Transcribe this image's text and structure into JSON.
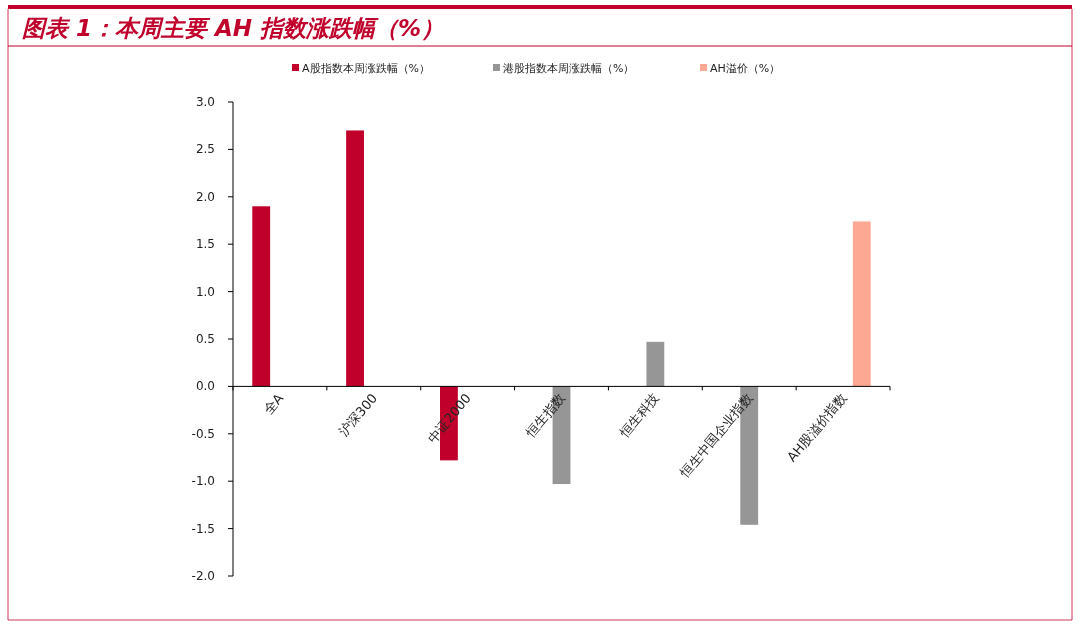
{
  "chart_data": {
    "type": "bar",
    "title": "图表 1：本周主要 AH 指数涨跌幅（%）",
    "categories": [
      "全A",
      "沪深300",
      "中证2000",
      "恒生指数",
      "恒生科技",
      "恒生中国企业指数",
      "AH股溢价指数"
    ],
    "series": [
      {
        "name": "A股指数本周涨跌幅（%）",
        "color": "#c0002b",
        "values": [
          1.9,
          2.7,
          -0.78,
          null,
          null,
          null,
          null
        ]
      },
      {
        "name": "港股指数本周涨跌幅（%）",
        "color": "#969696",
        "values": [
          null,
          null,
          null,
          -1.03,
          0.47,
          -1.46,
          null
        ]
      },
      {
        "name": "AH溢价（%）",
        "color": "#fca893",
        "values": [
          null,
          null,
          null,
          null,
          null,
          null,
          1.74
        ]
      }
    ],
    "ylim": [
      -2,
      3
    ],
    "yticks": [
      {
        "value": 3,
        "label": "3.0"
      },
      {
        "value": 2.5,
        "label": "2.5"
      },
      {
        "value": 2,
        "label": "2.0"
      },
      {
        "value": 1.5,
        "label": "1.5"
      },
      {
        "value": 1,
        "label": "1.0"
      },
      {
        "value": 0.5,
        "label": "0.5"
      },
      {
        "value": 0,
        "label": "0.0"
      },
      {
        "value": -0.5,
        "label": "-0.5"
      },
      {
        "value": -1,
        "label": "-1.0"
      },
      {
        "value": -1.5,
        "label": "-1.5"
      },
      {
        "value": -2,
        "label": "-2.0"
      }
    ],
    "legend": "top"
  }
}
